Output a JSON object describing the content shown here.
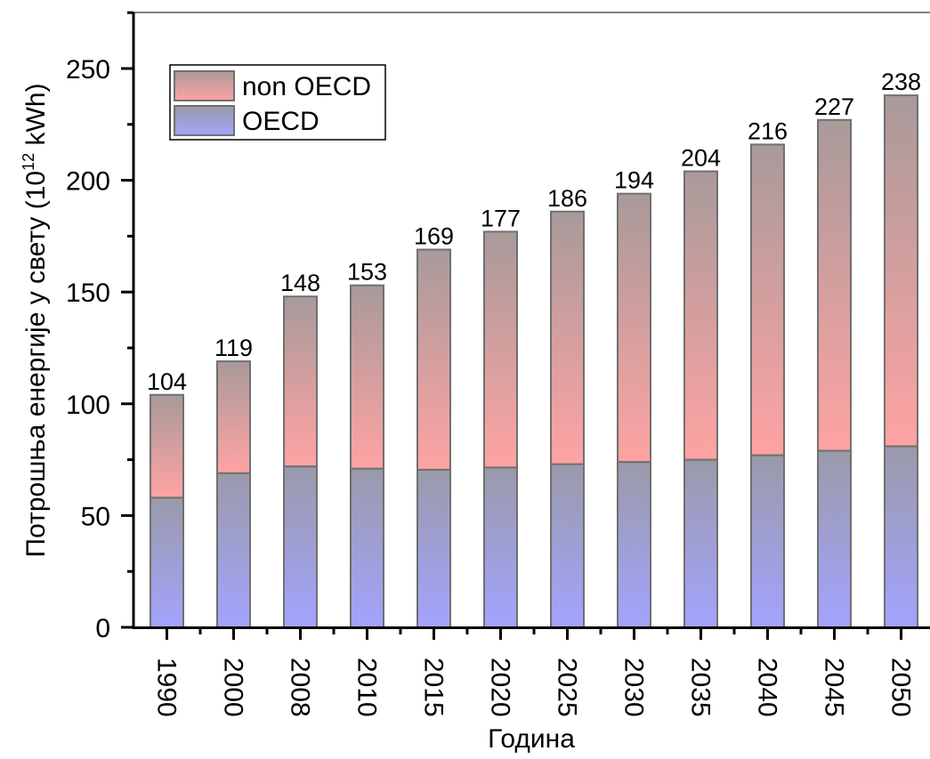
{
  "chart_data": {
    "type": "bar",
    "stacked": true,
    "categories": [
      "1990",
      "2000",
      "2008",
      "2010",
      "2015",
      "2020",
      "2025",
      "2030",
      "2035",
      "2040",
      "2045",
      "2050"
    ],
    "series": [
      {
        "name": "OECD",
        "values": [
          58,
          69,
          72,
          71,
          70.5,
          71.5,
          73,
          74,
          75,
          77,
          79,
          81
        ]
      },
      {
        "name": "non OECD",
        "values": [
          46,
          50,
          76,
          82,
          98.5,
          105.5,
          113,
          120,
          129,
          139,
          148,
          157
        ]
      }
    ],
    "totals": [
      104,
      119,
      148,
      153,
      169,
      177,
      186,
      194,
      204,
      216,
      227,
      238
    ],
    "xlabel": "Година",
    "ylabel_prefix": "Потрошња енергије у свету (10",
    "ylabel_exponent": "12",
    "ylabel_suffix": " kWh)",
    "ylim": [
      0,
      275
    ],
    "yticks": [
      0,
      50,
      100,
      150,
      200,
      250
    ],
    "grid": false,
    "legend_position": "top-left",
    "colors": {
      "non_oecd_top": "#a99a9a",
      "non_oecd_bottom": "#ffa3a3",
      "oecd_top": "#9a9aaa",
      "oecd_bottom": "#a3a3ff",
      "bar_edge": "#707070"
    }
  }
}
